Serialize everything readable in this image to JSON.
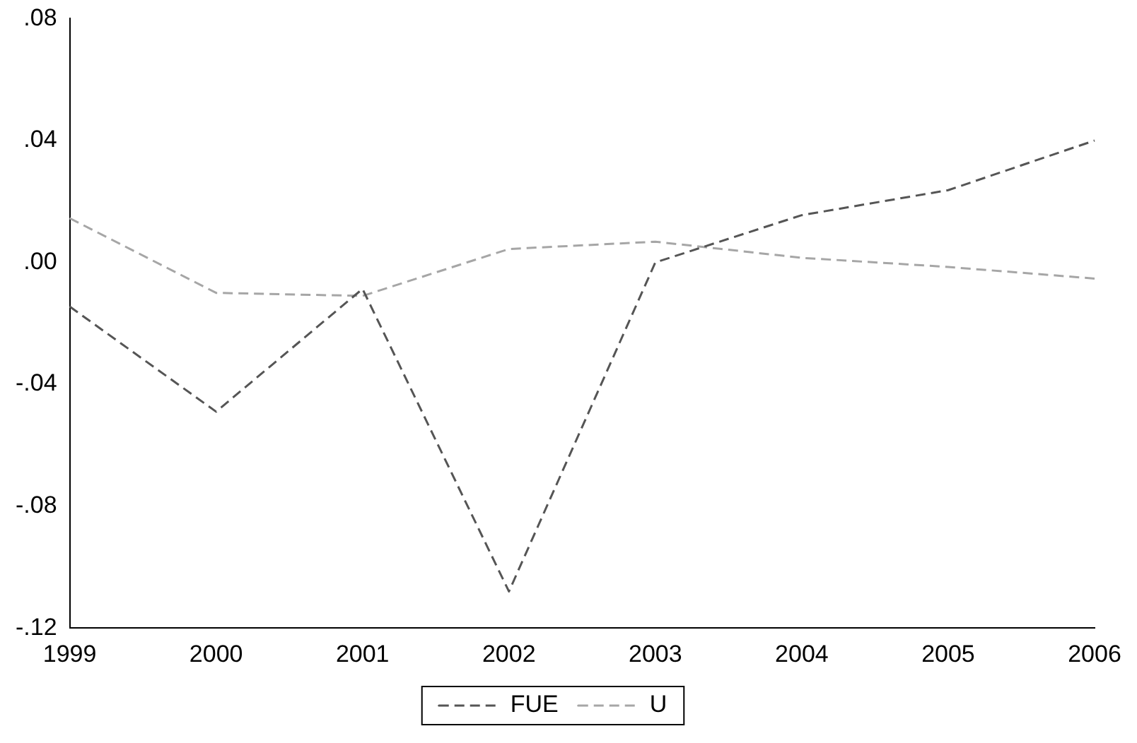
{
  "chart_data": {
    "type": "line",
    "categories": [
      "1999",
      "2000",
      "2001",
      "2002",
      "2003",
      "2004",
      "2005",
      "2006"
    ],
    "series": [
      {
        "name": "FUE",
        "color": "#555555",
        "values": [
          -0.0145,
          -0.049,
          -0.0087,
          -0.108,
          0.0,
          0.0155,
          0.0237,
          0.04
        ]
      },
      {
        "name": "U",
        "color": "#a6a6a6",
        "values": [
          0.0145,
          -0.01,
          -0.011,
          0.0044,
          0.0068,
          0.0015,
          -0.0015,
          -0.0053
        ]
      }
    ],
    "ylim": [
      -0.12,
      0.08
    ],
    "yticks": [
      {
        "value": -0.12,
        "label": "-.12"
      },
      {
        "value": -0.08,
        "label": "-.08"
      },
      {
        "value": -0.04,
        "label": "-.04"
      },
      {
        "value": 0,
        "label": ".00"
      },
      {
        "value": 0.04,
        "label": ".04"
      },
      {
        "value": 0.08,
        "label": ".08"
      }
    ],
    "grid": false,
    "legend": "bottom",
    "line_style": "dashed",
    "marker": "none"
  }
}
